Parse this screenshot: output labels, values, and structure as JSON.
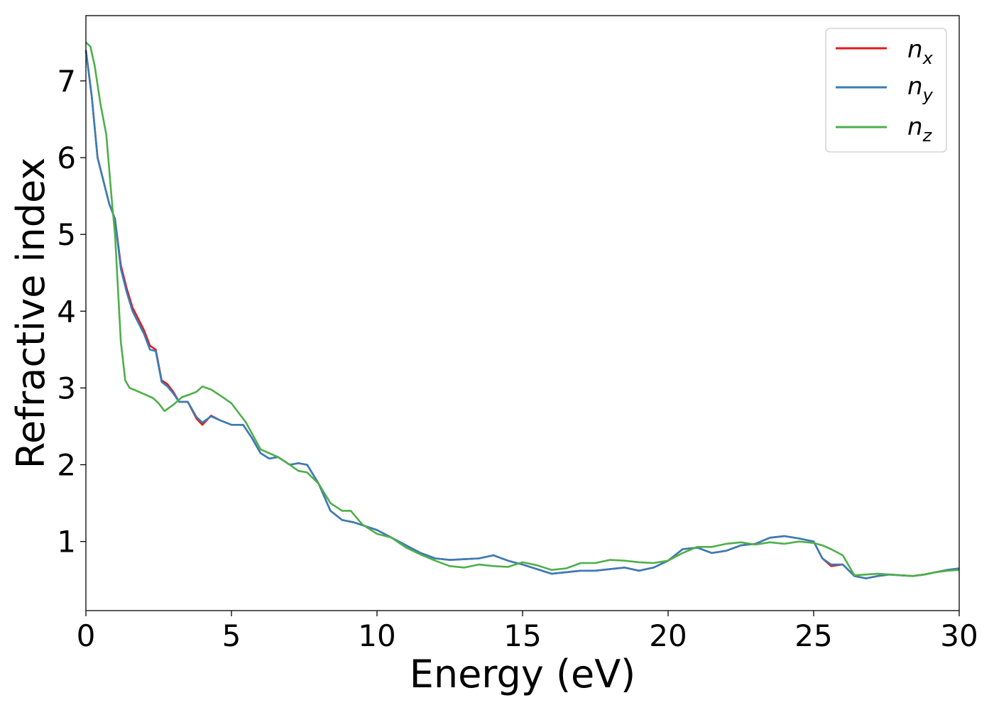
{
  "chart_data": {
    "type": "line",
    "title": "",
    "xlabel": "Energy (eV)",
    "ylabel": "Refractive index",
    "xlim": [
      0,
      30
    ],
    "ylim": [
      0.1,
      7.85
    ],
    "xticks": [
      0,
      5,
      10,
      15,
      20,
      25,
      30
    ],
    "yticks": [
      1,
      2,
      3,
      4,
      5,
      6,
      7
    ],
    "xtick_labels": [
      "0",
      "5",
      "10",
      "15",
      "20",
      "25",
      "30"
    ],
    "ytick_labels": [
      "1",
      "2",
      "3",
      "4",
      "5",
      "6",
      "7"
    ],
    "grid": false,
    "legend_position": "top-right",
    "series": [
      {
        "name": "n_x",
        "label_main": "n",
        "label_sub": "x",
        "color": "#e41a1c",
        "x": [
          0,
          0.2,
          0.4,
          0.6,
          0.8,
          1.0,
          1.2,
          1.4,
          1.6,
          1.8,
          2.0,
          2.2,
          2.4,
          2.6,
          2.8,
          3.0,
          3.2,
          3.5,
          3.8,
          4.0,
          4.3,
          4.6,
          5.0,
          5.4,
          5.7,
          6.0,
          6.3,
          6.6,
          7.0,
          7.3,
          7.6,
          8.0,
          8.4,
          8.8,
          9.2,
          9.6,
          10.0,
          10.5,
          11.0,
          11.5,
          12.0,
          12.5,
          13.0,
          13.5,
          14.0,
          14.5,
          15.0,
          15.5,
          16.0,
          16.5,
          17.0,
          17.5,
          18.0,
          18.5,
          19.0,
          19.5,
          20.0,
          20.5,
          21.0,
          21.5,
          22.0,
          22.5,
          23.0,
          23.5,
          24.0,
          24.5,
          25.0,
          25.3,
          25.6,
          26.0,
          26.4,
          26.8,
          27.2,
          27.6,
          28.0,
          28.4,
          28.8,
          29.2,
          29.6,
          30.0
        ],
        "y": [
          7.4,
          6.8,
          6.0,
          5.7,
          5.4,
          5.2,
          4.6,
          4.3,
          4.05,
          3.9,
          3.75,
          3.55,
          3.5,
          3.1,
          3.05,
          2.95,
          2.82,
          2.82,
          2.6,
          2.52,
          2.64,
          2.58,
          2.52,
          2.52,
          2.35,
          2.15,
          2.08,
          2.1,
          2.0,
          2.02,
          2.0,
          1.75,
          1.4,
          1.28,
          1.25,
          1.2,
          1.15,
          1.05,
          0.95,
          0.85,
          0.78,
          0.76,
          0.77,
          0.78,
          0.82,
          0.75,
          0.7,
          0.64,
          0.58,
          0.6,
          0.62,
          0.62,
          0.64,
          0.66,
          0.62,
          0.66,
          0.75,
          0.9,
          0.92,
          0.85,
          0.88,
          0.95,
          0.97,
          1.05,
          1.07,
          1.04,
          1.0,
          0.78,
          0.68,
          0.7,
          0.55,
          0.52,
          0.55,
          0.57,
          0.56,
          0.55,
          0.57,
          0.6,
          0.63,
          0.65
        ]
      },
      {
        "name": "n_y",
        "label_main": "n",
        "label_sub": "y",
        "color": "#377eb8",
        "x": [
          0,
          0.2,
          0.4,
          0.6,
          0.8,
          1.0,
          1.2,
          1.4,
          1.6,
          1.8,
          2.0,
          2.2,
          2.4,
          2.6,
          2.8,
          3.0,
          3.2,
          3.5,
          3.8,
          4.0,
          4.3,
          4.6,
          5.0,
          5.4,
          5.7,
          6.0,
          6.3,
          6.6,
          7.0,
          7.3,
          7.6,
          8.0,
          8.4,
          8.8,
          9.2,
          9.6,
          10.0,
          10.5,
          11.0,
          11.5,
          12.0,
          12.5,
          13.0,
          13.5,
          14.0,
          14.5,
          15.0,
          15.5,
          16.0,
          16.5,
          17.0,
          17.5,
          18.0,
          18.5,
          19.0,
          19.5,
          20.0,
          20.5,
          21.0,
          21.5,
          22.0,
          22.5,
          23.0,
          23.5,
          24.0,
          24.5,
          25.0,
          25.3,
          25.6,
          26.0,
          26.4,
          26.8,
          27.2,
          27.6,
          28.0,
          28.4,
          28.8,
          29.2,
          29.6,
          30.0
        ],
        "y": [
          7.4,
          6.8,
          6.0,
          5.7,
          5.4,
          5.2,
          4.55,
          4.25,
          4.0,
          3.85,
          3.7,
          3.5,
          3.48,
          3.08,
          3.02,
          2.93,
          2.82,
          2.82,
          2.62,
          2.55,
          2.63,
          2.58,
          2.52,
          2.52,
          2.35,
          2.15,
          2.08,
          2.1,
          2.0,
          2.02,
          2.0,
          1.75,
          1.4,
          1.28,
          1.25,
          1.2,
          1.15,
          1.05,
          0.95,
          0.85,
          0.78,
          0.76,
          0.77,
          0.78,
          0.82,
          0.75,
          0.7,
          0.64,
          0.58,
          0.6,
          0.62,
          0.62,
          0.64,
          0.66,
          0.62,
          0.66,
          0.75,
          0.9,
          0.92,
          0.85,
          0.88,
          0.95,
          0.97,
          1.05,
          1.07,
          1.04,
          1.0,
          0.78,
          0.7,
          0.7,
          0.55,
          0.52,
          0.55,
          0.57,
          0.56,
          0.55,
          0.57,
          0.6,
          0.63,
          0.65
        ]
      },
      {
        "name": "n_z",
        "label_main": "n",
        "label_sub": "z",
        "color": "#4daf4a",
        "x": [
          0,
          0.15,
          0.3,
          0.5,
          0.7,
          0.9,
          1.0,
          1.1,
          1.2,
          1.35,
          1.5,
          1.7,
          2.0,
          2.3,
          2.5,
          2.7,
          3.0,
          3.3,
          3.6,
          3.8,
          4.0,
          4.3,
          4.7,
          5.0,
          5.5,
          6.0,
          6.3,
          6.6,
          7.0,
          7.3,
          7.6,
          8.0,
          8.4,
          8.8,
          9.1,
          9.5,
          10.0,
          10.5,
          11.0,
          11.5,
          12.0,
          12.5,
          13.0,
          13.5,
          14.0,
          14.5,
          15.0,
          15.5,
          16.0,
          16.5,
          17.0,
          17.5,
          18.0,
          18.5,
          19.0,
          19.5,
          20.0,
          20.5,
          21.0,
          21.5,
          22.0,
          22.5,
          23.0,
          23.5,
          24.0,
          24.5,
          25.0,
          25.3,
          25.6,
          26.0,
          26.4,
          26.8,
          27.2,
          27.6,
          28.0,
          28.4,
          28.8,
          29.2,
          29.6,
          30.0
        ],
        "y": [
          7.5,
          7.45,
          7.2,
          6.7,
          6.3,
          5.4,
          5.0,
          4.3,
          3.6,
          3.1,
          3.0,
          2.97,
          2.92,
          2.87,
          2.8,
          2.7,
          2.78,
          2.88,
          2.92,
          2.95,
          3.02,
          2.98,
          2.88,
          2.8,
          2.55,
          2.2,
          2.15,
          2.1,
          2.0,
          1.92,
          1.9,
          1.75,
          1.5,
          1.4,
          1.4,
          1.22,
          1.1,
          1.05,
          0.92,
          0.83,
          0.75,
          0.68,
          0.66,
          0.7,
          0.68,
          0.67,
          0.73,
          0.69,
          0.63,
          0.65,
          0.72,
          0.72,
          0.76,
          0.75,
          0.73,
          0.72,
          0.75,
          0.85,
          0.93,
          0.93,
          0.97,
          0.99,
          0.96,
          0.99,
          0.97,
          1.0,
          0.98,
          0.95,
          0.9,
          0.82,
          0.56,
          0.57,
          0.58,
          0.57,
          0.56,
          0.55,
          0.57,
          0.6,
          0.62,
          0.63
        ]
      }
    ]
  }
}
